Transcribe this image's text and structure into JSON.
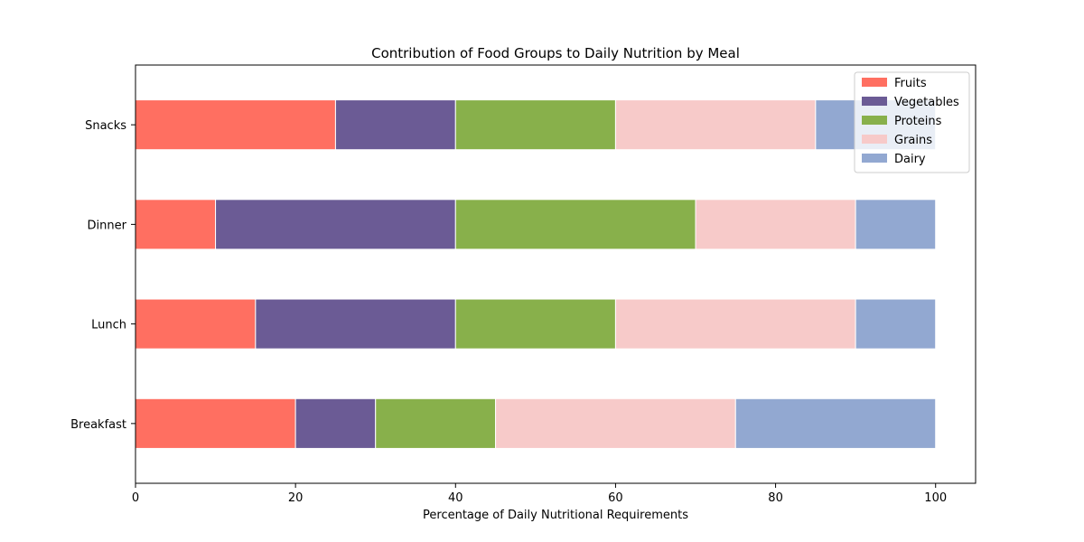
{
  "chart_data": {
    "type": "bar",
    "orientation": "horizontal",
    "stacked": true,
    "title": "Contribution of Food Groups to Daily Nutrition by Meal",
    "xlabel": "Percentage of Daily Nutritional Requirements",
    "ylabel": "",
    "xlim": [
      0,
      105
    ],
    "x_ticks": [
      0,
      20,
      40,
      60,
      80,
      100
    ],
    "categories": [
      "Breakfast",
      "Lunch",
      "Dinner",
      "Snacks"
    ],
    "series": [
      {
        "name": "Fruits",
        "color": "#ff6f61",
        "values": [
          20,
          15,
          10,
          25
        ]
      },
      {
        "name": "Vegetables",
        "color": "#6b5b95",
        "values": [
          10,
          25,
          30,
          15
        ]
      },
      {
        "name": "Proteins",
        "color": "#88b04b",
        "values": [
          15,
          20,
          30,
          20
        ]
      },
      {
        "name": "Grains",
        "color": "#f7cac9",
        "values": [
          30,
          30,
          20,
          25
        ]
      },
      {
        "name": "Dairy",
        "color": "#92a8d1",
        "values": [
          25,
          10,
          10,
          15
        ]
      }
    ],
    "grid": false,
    "legend_position": "top-right"
  }
}
